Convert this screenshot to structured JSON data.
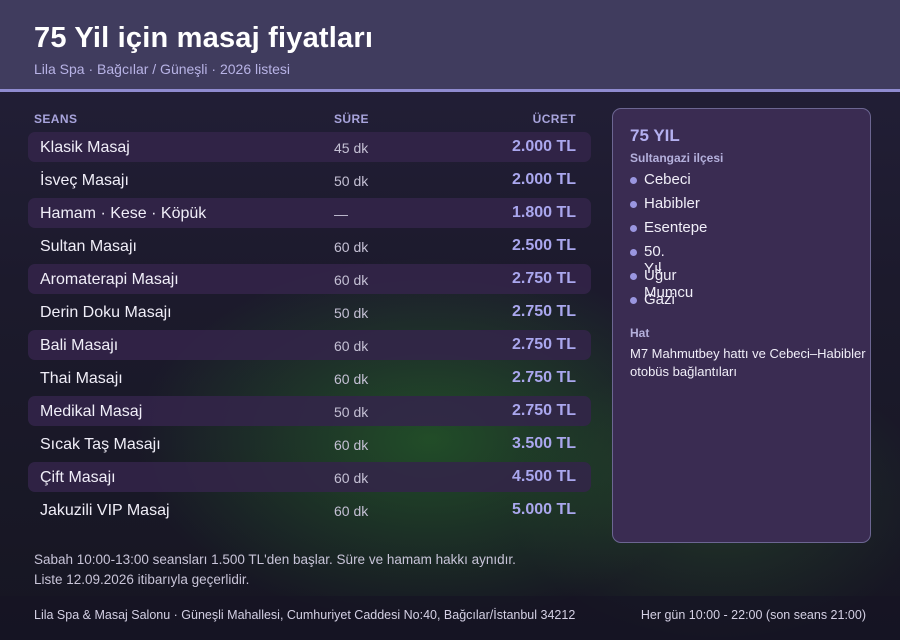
{
  "header": {
    "title": "75 Yil için masaj fiyatları",
    "subtitle": "Lila Spa · Bağcılar / Güneşli · 2026 listesi"
  },
  "table": {
    "columns": {
      "service": "SEANS",
      "duration": "SÜRE",
      "price": "ÜCRET"
    },
    "rows": [
      {
        "name": "Klasik Masaj",
        "duration": "45 dk",
        "price": "2.000 TL"
      },
      {
        "name": "İsveç Masajı",
        "duration": "50 dk",
        "price": "2.000 TL"
      },
      {
        "name": "Hamam · Kese · Köpük",
        "duration": "—",
        "price": "1.800 TL"
      },
      {
        "name": "Sultan Masajı",
        "duration": "60 dk",
        "price": "2.500 TL"
      },
      {
        "name": "Aromaterapi Masajı",
        "duration": "60 dk",
        "price": "2.750 TL"
      },
      {
        "name": "Derin Doku Masajı",
        "duration": "50 dk",
        "price": "2.750 TL"
      },
      {
        "name": "Bali Masajı",
        "duration": "60 dk",
        "price": "2.750 TL"
      },
      {
        "name": "Thai Masajı",
        "duration": "60 dk",
        "price": "2.750 TL"
      },
      {
        "name": "Medikal Masaj",
        "duration": "50 dk",
        "price": "2.750 TL"
      },
      {
        "name": "Sıcak Taş Masajı",
        "duration": "60 dk",
        "price": "3.500 TL"
      },
      {
        "name": "Çift Masajı",
        "duration": "60 dk",
        "price": "4.500 TL"
      },
      {
        "name": "Jakuzili VIP Masaj",
        "duration": "60 dk",
        "price": "5.000 TL"
      }
    ]
  },
  "panel": {
    "title": "75 YIL",
    "district_label": "Sultangazi ilçesi",
    "neighbourhoods": [
      "Cebeci",
      "Habibler",
      "Esentepe",
      "50. Yıl",
      "Uğur Mumcu",
      "Gazi"
    ],
    "line_label": "Hat",
    "line_text": "M7 Mahmutbey hattı ve Cebeci–Habibler otobüs bağlantıları"
  },
  "notes": {
    "line1": "Sabah 10:00-13:00 seansları 1.500 TL'den başlar. Süre ve hamam hakkı aynıdır.",
    "line2": "Liste 12.09.2026 itibarıyla geçerlidir."
  },
  "footer": {
    "address": "Lila Spa & Masaj Salonu · Güneşli Mahallesi, Cumhuriyet Caddesi No:40, Bağcılar/İstanbul 34212",
    "hours": "Her gün 10:00 - 22:00 (son seans 21:00)"
  },
  "colors": {
    "header_bg": "#403c5e",
    "accent": "#8f8bd0",
    "price": "#aaa7ee",
    "row_shade": "#34244a",
    "panel_bg": "#3a2c52"
  }
}
